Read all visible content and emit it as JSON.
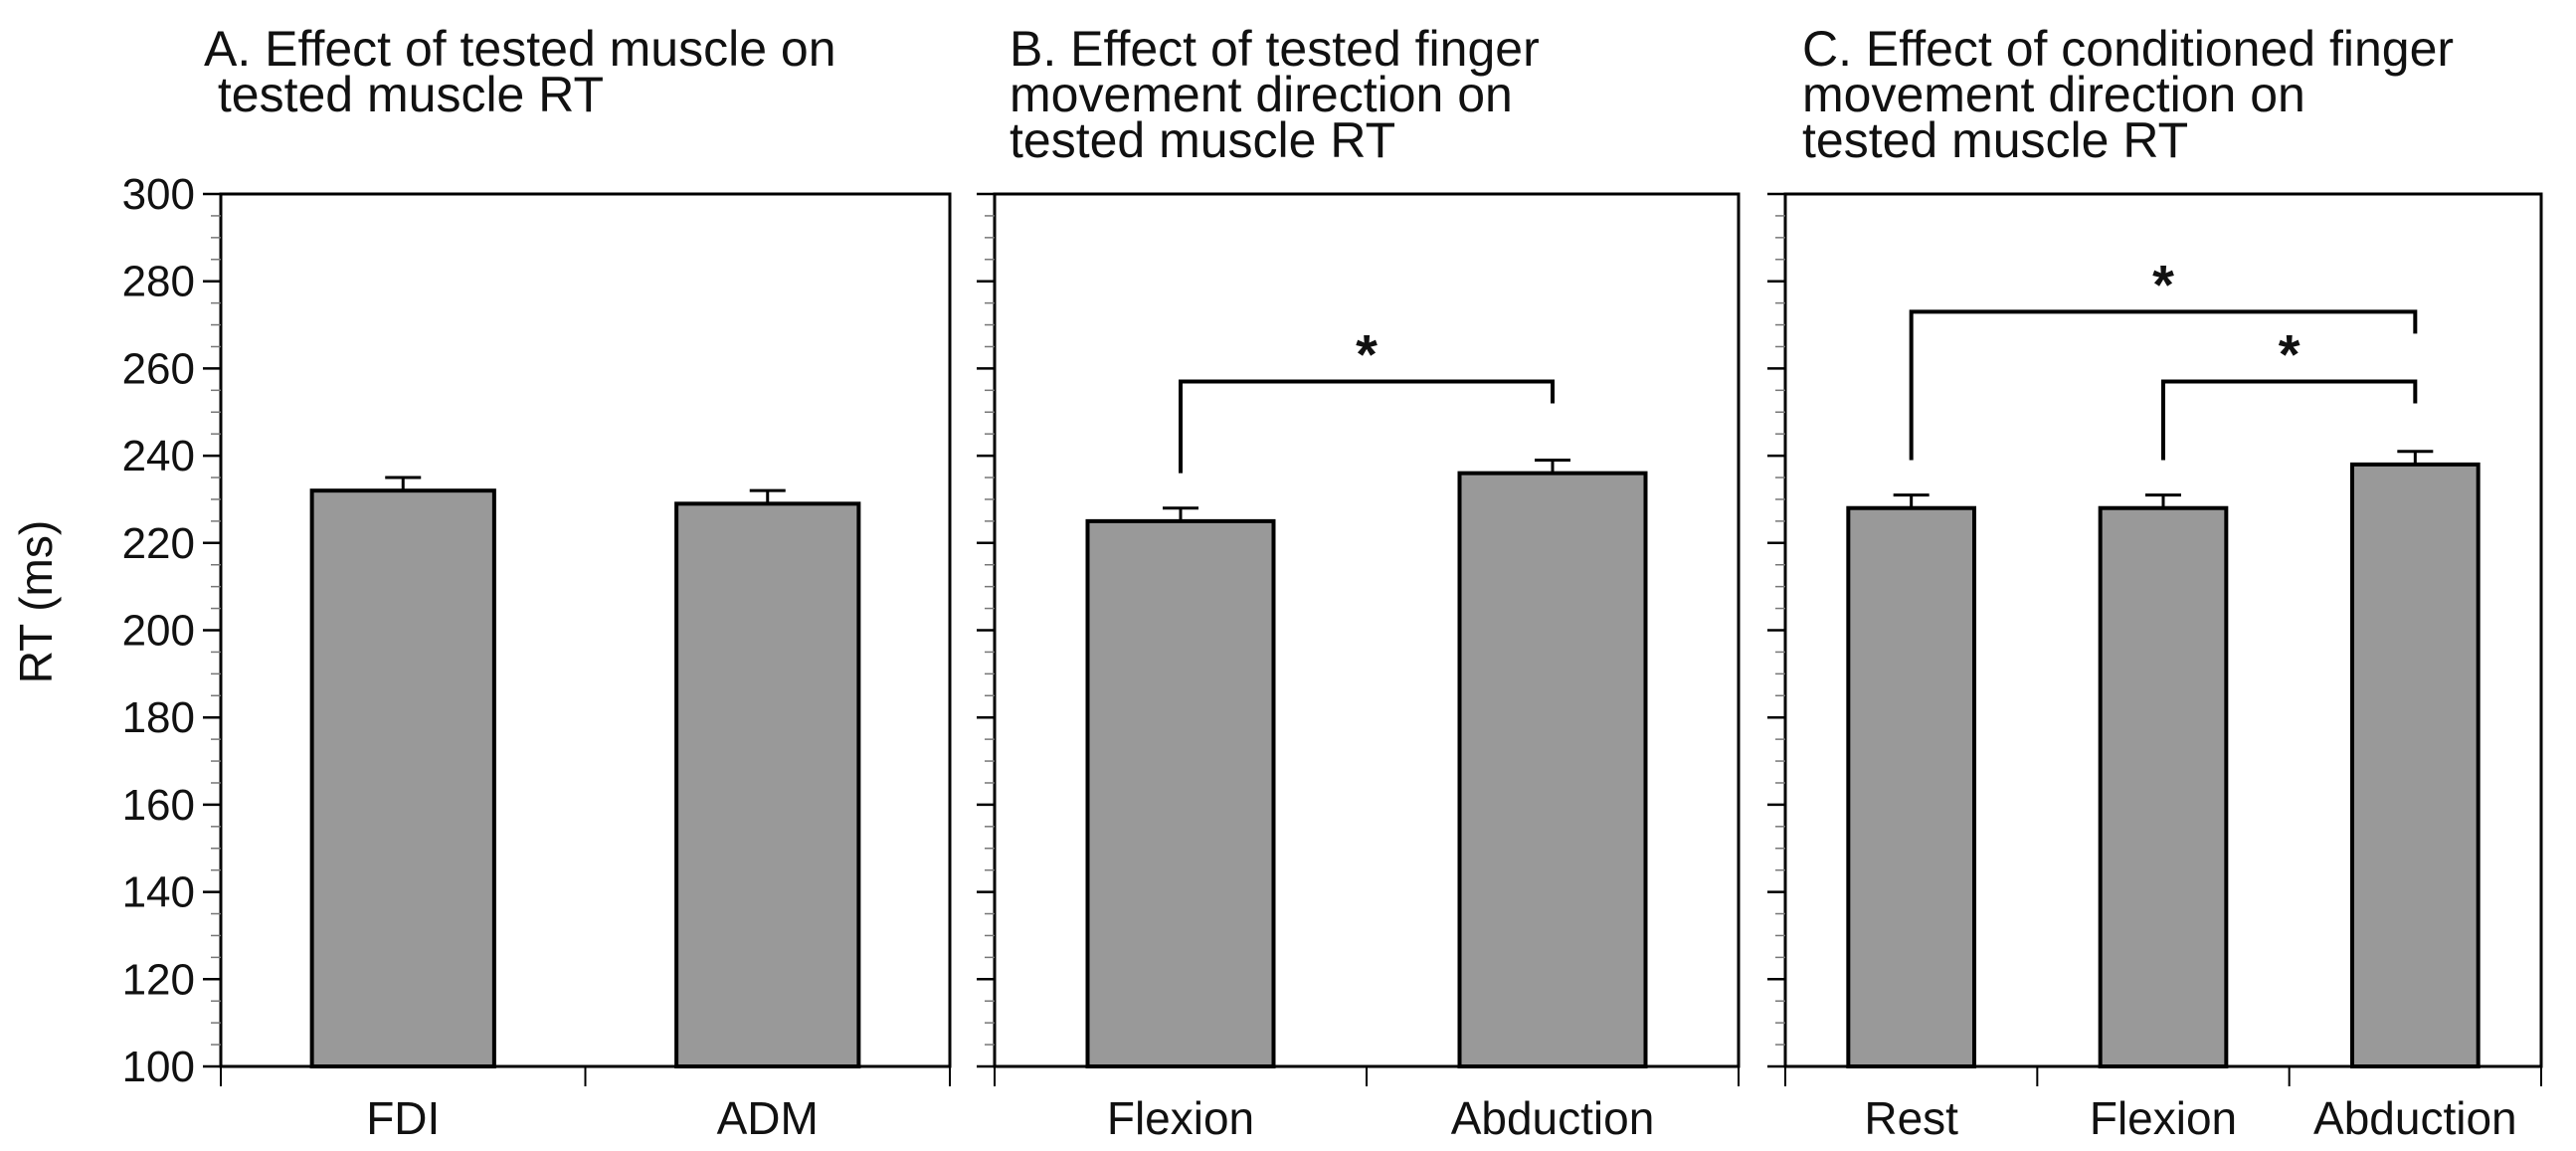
{
  "figure": {
    "ylabel": "RT (ms)",
    "colors": {
      "bar_fill": "#999999",
      "bar_stroke": "#000000",
      "axis": "#000000",
      "tick_minor": "#777777"
    }
  },
  "chart_data": [
    {
      "type": "bar",
      "panel": "A",
      "title_lines": [
        "A. Effect of tested muscle on",
        " tested muscle RT"
      ],
      "categories": [
        "FDI",
        "ADM"
      ],
      "values": [
        232,
        229
      ],
      "errors": [
        3,
        3
      ],
      "ylabel": "RT (ms)",
      "ylim": [
        100,
        300
      ],
      "yticks": [
        100,
        120,
        140,
        160,
        180,
        200,
        220,
        240,
        260,
        280,
        300
      ],
      "show_tick_labels": true,
      "significance": []
    },
    {
      "type": "bar",
      "panel": "B",
      "title_lines": [
        "B. Effect of tested finger",
        "movement direction on",
        "tested muscle RT"
      ],
      "categories": [
        "Flexion",
        "Abduction"
      ],
      "values": [
        225,
        236
      ],
      "errors": [
        3,
        3
      ],
      "ylabel": "",
      "ylim": [
        100,
        300
      ],
      "yticks": [
        100,
        120,
        140,
        160,
        180,
        200,
        220,
        240,
        260,
        280,
        300
      ],
      "show_tick_labels": false,
      "significance": [
        {
          "from": 0,
          "to": 1,
          "level": 257,
          "label": "*"
        }
      ]
    },
    {
      "type": "bar",
      "panel": "C",
      "title_lines": [
        "C. Effect of conditioned finger",
        "movement direction on",
        "tested muscle RT"
      ],
      "categories": [
        "Rest",
        "Flexion",
        "Abduction"
      ],
      "values": [
        228,
        228,
        238
      ],
      "errors": [
        3,
        3,
        3
      ],
      "ylabel": "",
      "ylim": [
        100,
        300
      ],
      "yticks": [
        100,
        120,
        140,
        160,
        180,
        200,
        220,
        240,
        260,
        280,
        300
      ],
      "show_tick_labels": false,
      "significance": [
        {
          "from": 0,
          "to": 2,
          "level": 273,
          "label": "*"
        },
        {
          "from": 1,
          "to": 2,
          "level": 257,
          "label": "*"
        }
      ]
    }
  ]
}
